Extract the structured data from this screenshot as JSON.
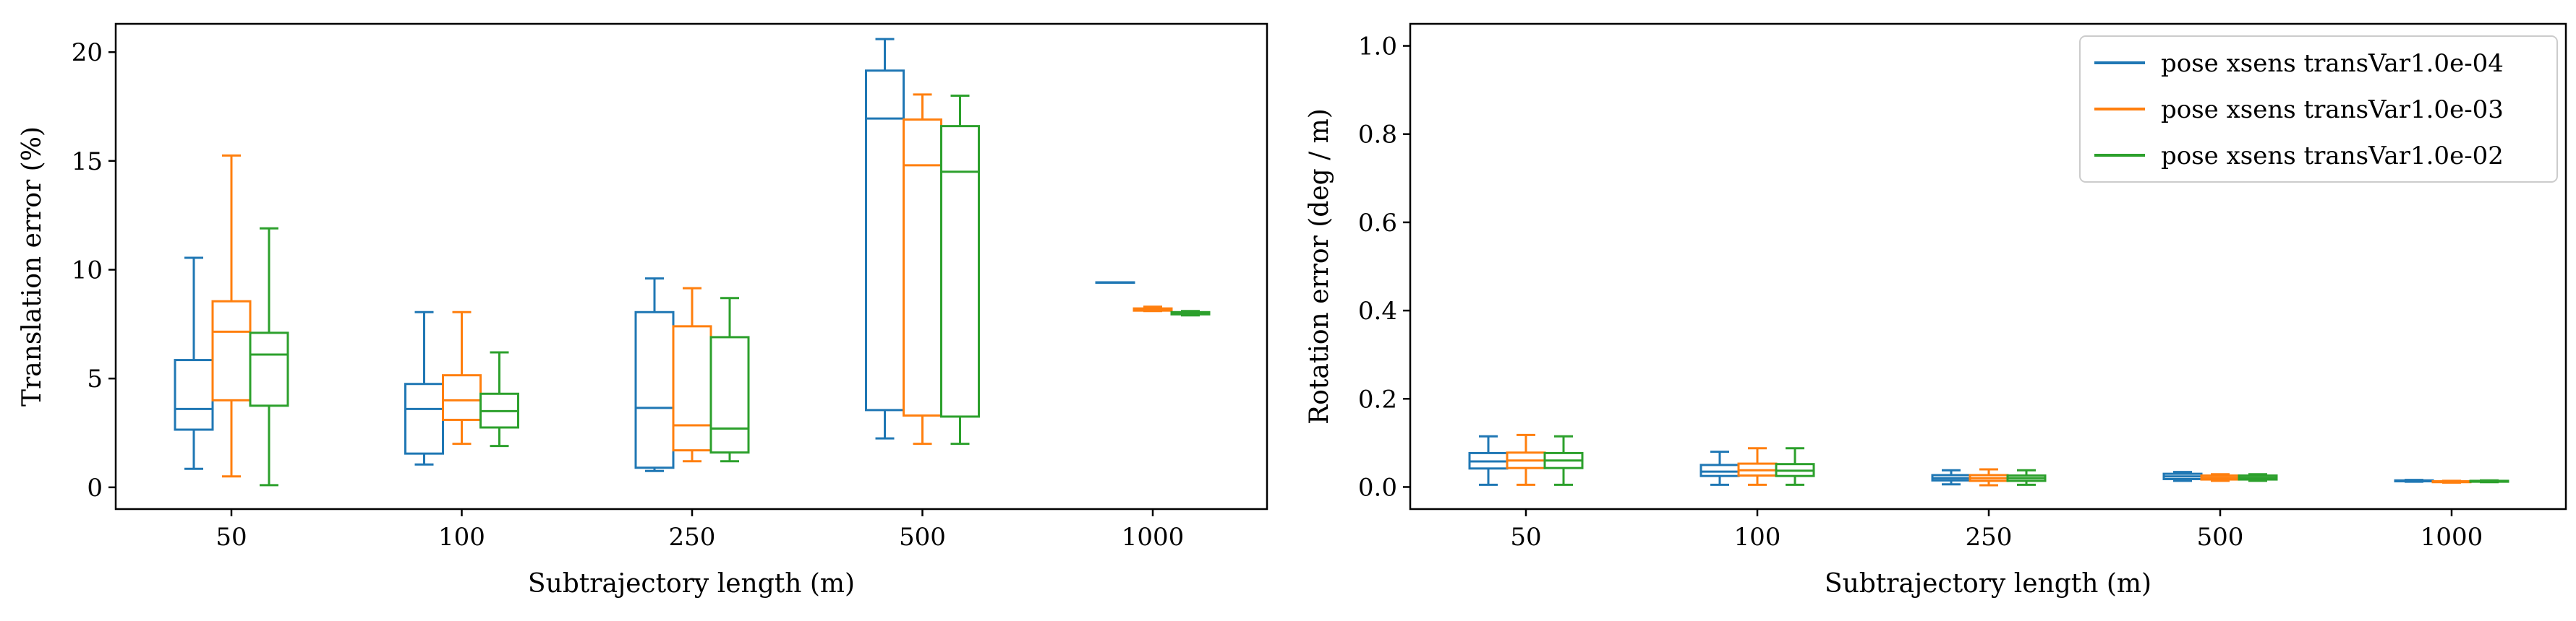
{
  "colors": {
    "series": [
      "#1f77b4",
      "#ff7f0e",
      "#2ca02c"
    ]
  },
  "chart_data": [
    {
      "type": "box",
      "xlabel": "Subtrajectory length (m)",
      "ylabel": "Translation error (%)",
      "categories": [
        "50",
        "100",
        "250",
        "500",
        "1000"
      ],
      "ylim": [
        -1,
        21.3
      ],
      "yticks": [
        0,
        5,
        10,
        15,
        20
      ],
      "yticklabels": [
        "0",
        "5",
        "10",
        "15",
        "20"
      ],
      "grid": false,
      "series": [
        {
          "name": "pose xsens transVar1.0e-04",
          "boxes": [
            {
              "whislo": 0.85,
              "q1": 2.65,
              "med": 3.6,
              "q3": 5.85,
              "whishi": 10.55
            },
            {
              "whislo": 1.05,
              "q1": 1.55,
              "med": 3.6,
              "q3": 4.75,
              "whishi": 8.05
            },
            {
              "whislo": 0.75,
              "q1": 0.9,
              "med": 3.65,
              "q3": 8.05,
              "whishi": 9.6
            },
            {
              "whislo": 2.25,
              "q1": 3.55,
              "med": 16.95,
              "q3": 19.15,
              "whishi": 20.6
            },
            {
              "whislo": 9.42,
              "q1": 9.42,
              "med": 9.42,
              "q3": 9.42,
              "whishi": 9.42
            }
          ]
        },
        {
          "name": "pose xsens transVar1.0e-03",
          "boxes": [
            {
              "whislo": 0.5,
              "q1": 4.0,
              "med": 7.15,
              "q3": 8.55,
              "whishi": 15.25
            },
            {
              "whislo": 2.0,
              "q1": 3.1,
              "med": 4.0,
              "q3": 5.15,
              "whishi": 8.05
            },
            {
              "whislo": 1.2,
              "q1": 1.7,
              "med": 2.85,
              "q3": 7.4,
              "whishi": 9.15
            },
            {
              "whislo": 2.0,
              "q1": 3.3,
              "med": 14.8,
              "q3": 16.9,
              "whishi": 18.05
            },
            {
              "whislo": 8.1,
              "q1": 8.12,
              "med": 8.15,
              "q3": 8.22,
              "whishi": 8.3
            }
          ]
        },
        {
          "name": "pose xsens transVar1.0e-02",
          "boxes": [
            {
              "whislo": 0.1,
              "q1": 3.75,
              "med": 6.1,
              "q3": 7.1,
              "whishi": 11.9
            },
            {
              "whislo": 1.9,
              "q1": 2.75,
              "med": 3.5,
              "q3": 4.3,
              "whishi": 6.2
            },
            {
              "whislo": 1.2,
              "q1": 1.6,
              "med": 2.7,
              "q3": 6.9,
              "whishi": 8.7
            },
            {
              "whislo": 2.0,
              "q1": 3.25,
              "med": 14.5,
              "q3": 16.6,
              "whishi": 18.0
            },
            {
              "whislo": 7.9,
              "q1": 7.95,
              "med": 8.0,
              "q3": 8.05,
              "whishi": 8.1
            }
          ]
        }
      ]
    },
    {
      "type": "box",
      "xlabel": "Subtrajectory length (m)",
      "ylabel": "Rotation error (deg / m)",
      "categories": [
        "50",
        "100",
        "250",
        "500",
        "1000"
      ],
      "ylim": [
        -0.05,
        1.05
      ],
      "yticks": [
        0.0,
        0.2,
        0.4,
        0.6,
        0.8,
        1.0
      ],
      "yticklabels": [
        "0.0",
        "0.2",
        "0.4",
        "0.6",
        "0.8",
        "1.0"
      ],
      "grid": false,
      "legend": {
        "position": "top-right",
        "entries": [
          "pose xsens transVar1.0e-04",
          "pose xsens transVar1.0e-03",
          "pose xsens transVar1.0e-02"
        ]
      },
      "series": [
        {
          "name": "pose xsens transVar1.0e-04",
          "boxes": [
            {
              "whislo": 0.005,
              "q1": 0.042,
              "med": 0.058,
              "q3": 0.077,
              "whishi": 0.115
            },
            {
              "whislo": 0.005,
              "q1": 0.025,
              "med": 0.035,
              "q3": 0.05,
              "whishi": 0.08
            },
            {
              "whislo": 0.006,
              "q1": 0.015,
              "med": 0.02,
              "q3": 0.027,
              "whishi": 0.038
            },
            {
              "whislo": 0.014,
              "q1": 0.018,
              "med": 0.024,
              "q3": 0.03,
              "whishi": 0.034
            },
            {
              "whislo": 0.012,
              "q1": 0.013,
              "med": 0.014,
              "q3": 0.015,
              "whishi": 0.016
            }
          ]
        },
        {
          "name": "pose xsens transVar1.0e-03",
          "boxes": [
            {
              "whislo": 0.005,
              "q1": 0.043,
              "med": 0.06,
              "q3": 0.078,
              "whishi": 0.118
            },
            {
              "whislo": 0.005,
              "q1": 0.026,
              "med": 0.038,
              "q3": 0.053,
              "whishi": 0.088
            },
            {
              "whislo": 0.004,
              "q1": 0.014,
              "med": 0.02,
              "q3": 0.027,
              "whishi": 0.04
            },
            {
              "whislo": 0.014,
              "q1": 0.017,
              "med": 0.021,
              "q3": 0.026,
              "whishi": 0.029
            },
            {
              "whislo": 0.01,
              "q1": 0.011,
              "med": 0.012,
              "q3": 0.013,
              "whishi": 0.014
            }
          ]
        },
        {
          "name": "pose xsens transVar1.0e-02",
          "boxes": [
            {
              "whislo": 0.005,
              "q1": 0.043,
              "med": 0.06,
              "q3": 0.077,
              "whishi": 0.115
            },
            {
              "whislo": 0.005,
              "q1": 0.025,
              "med": 0.037,
              "q3": 0.052,
              "whishi": 0.088
            },
            {
              "whislo": 0.005,
              "q1": 0.014,
              "med": 0.02,
              "q3": 0.026,
              "whishi": 0.038
            },
            {
              "whislo": 0.014,
              "q1": 0.017,
              "med": 0.021,
              "q3": 0.026,
              "whishi": 0.029
            },
            {
              "whislo": 0.011,
              "q1": 0.012,
              "med": 0.013,
              "q3": 0.014,
              "whishi": 0.015
            }
          ]
        }
      ]
    }
  ]
}
